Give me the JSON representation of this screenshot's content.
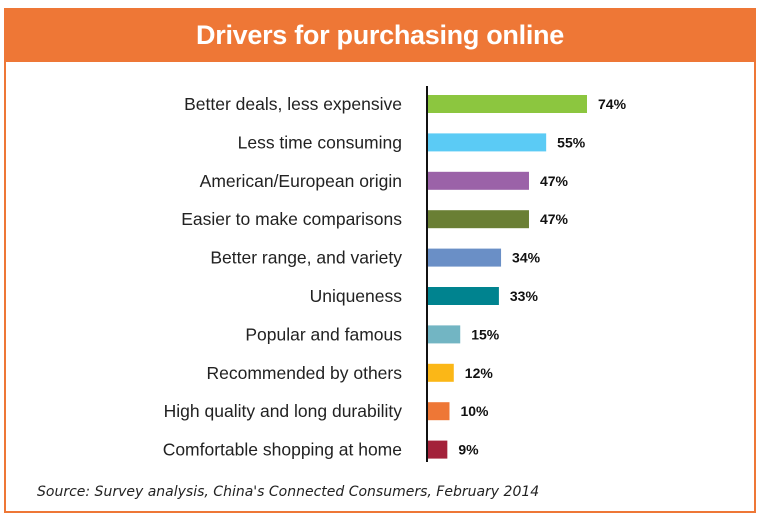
{
  "header": {
    "title": "Drivers for purchasing online"
  },
  "chart_data": {
    "type": "bar",
    "orientation": "horizontal",
    "categories": [
      "Better deals, less expensive",
      "Less time consuming",
      "American/European origin",
      "Easier to make comparisons",
      "Better range, and variety",
      "Uniqueness",
      "Popular and famous",
      "Recommended by others",
      "High quality and long durability",
      "Comfortable shopping at home"
    ],
    "values": [
      74,
      55,
      47,
      47,
      34,
      33,
      15,
      12,
      10,
      9
    ],
    "value_labels": [
      "74%",
      "55%",
      "47%",
      "47%",
      "34%",
      "33%",
      "15%",
      "12%",
      "10%",
      "9%"
    ],
    "colors": [
      "#8cc63f",
      "#5bcbf5",
      "#9b62a8",
      "#6a7f34",
      "#6a8fc6",
      "#00838f",
      "#72b5c3",
      "#fbb717",
      "#ee7736",
      "#a3213a"
    ],
    "title": "Drivers for purchasing online",
    "xlim": [
      0,
      74
    ],
    "grid": false,
    "legend": "none"
  },
  "footer": {
    "source": "Source: Survey analysis, China's Connected Consumers, February 2014"
  }
}
